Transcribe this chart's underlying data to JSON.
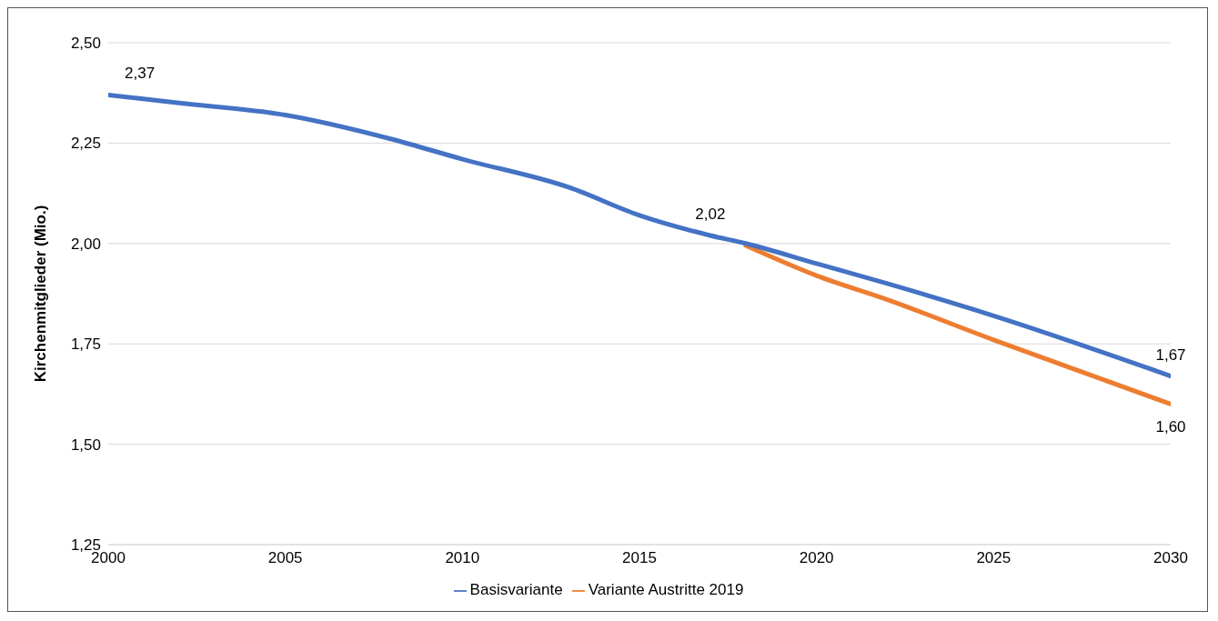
{
  "chart_data": {
    "type": "line",
    "ylabel": "Kirchenmitglieder (Mio.)",
    "x": [
      2000,
      2002,
      2005,
      2008,
      2010,
      2013,
      2015,
      2017,
      2018,
      2020,
      2022,
      2025,
      2030
    ],
    "series": [
      {
        "name": "Variante Austritte 2019",
        "color": "#ed7d31",
        "values": [
          null,
          null,
          null,
          null,
          null,
          null,
          null,
          null,
          1.995,
          1.92,
          1.86,
          1.76,
          1.6
        ]
      },
      {
        "name": "Basisvariante",
        "color": "#4472c4",
        "values": [
          2.37,
          2.35,
          2.32,
          2.26,
          2.21,
          2.14,
          2.07,
          2.02,
          2.0,
          1.95,
          1.9,
          1.82,
          1.67
        ]
      }
    ],
    "xlim": [
      2000,
      2030
    ],
    "xticks": [
      2000,
      2005,
      2010,
      2015,
      2020,
      2025,
      2030
    ],
    "ylim": [
      1.25,
      2.5
    ],
    "yticks": [
      {
        "value": 1.25,
        "label": "1,25"
      },
      {
        "value": 1.5,
        "label": "1,50"
      },
      {
        "value": 1.75,
        "label": "1,75"
      },
      {
        "value": 2,
        "label": "2,00"
      },
      {
        "value": 2.25,
        "label": "2,25"
      },
      {
        "value": 2.5,
        "label": "2,50"
      }
    ],
    "annotations": [
      {
        "text": "2,37",
        "x": 2000,
        "y": 2.37
      },
      {
        "text": "2,02",
        "x": 2017,
        "y": 2.02
      },
      {
        "text": "1,67",
        "x": 2030,
        "y": 1.67
      },
      {
        "text": "1,60",
        "x": 2030,
        "y": 1.6
      }
    ],
    "grid": "y",
    "legend": "bottom",
    "marker": "none",
    "line_style": "solid"
  }
}
